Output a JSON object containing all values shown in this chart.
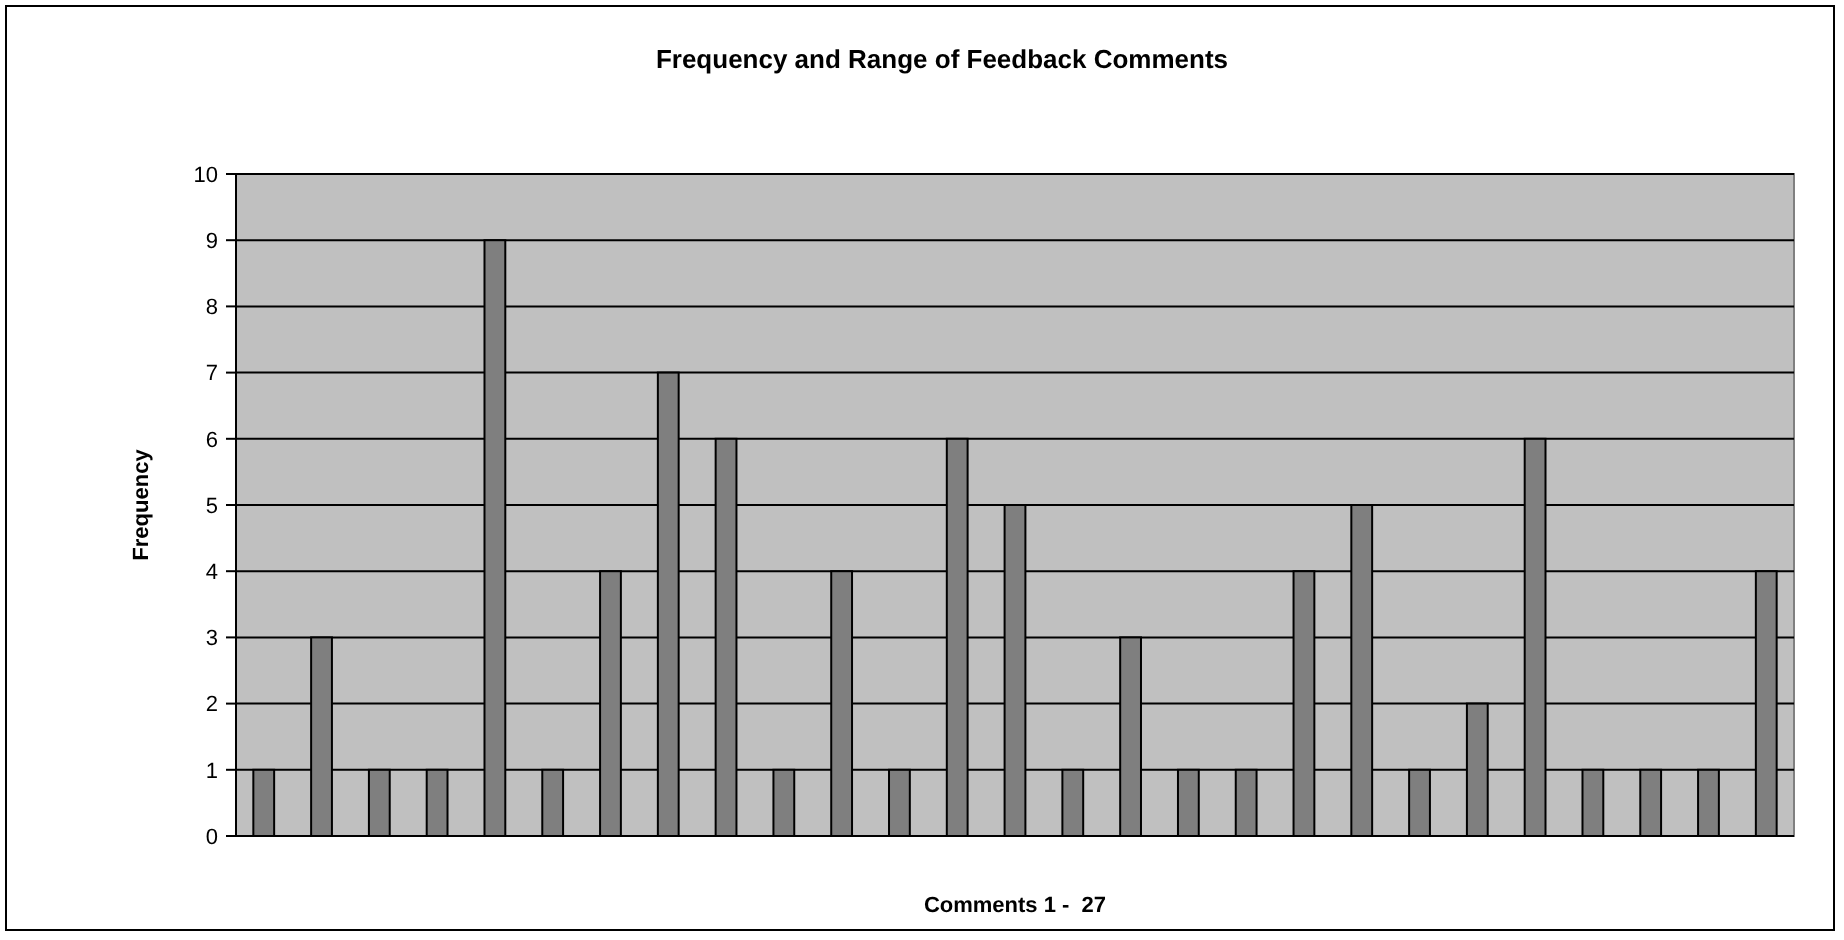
{
  "chart_data": {
    "type": "bar",
    "title": "Frequency and Range of Feedback Comments",
    "xlabel": "Comments 1 -  27",
    "ylabel": "Frequency",
    "categories": [
      null,
      null,
      null,
      null,
      null,
      null,
      null,
      null,
      null,
      null,
      null,
      null,
      null,
      null,
      null,
      null,
      null,
      null,
      null,
      null,
      null,
      null,
      null,
      null,
      null,
      null,
      null
    ],
    "values": [
      1,
      3,
      1,
      1,
      9,
      1,
      4,
      7,
      6,
      1,
      4,
      1,
      6,
      5,
      1,
      3,
      1,
      1,
      4,
      5,
      1,
      2,
      6,
      1,
      1,
      1,
      4
    ],
    "color": "#7f7f7f",
    "ylim": [
      0,
      10
    ],
    "yticks": [
      0,
      1,
      2,
      3,
      4,
      5,
      6,
      7,
      8,
      9,
      10
    ],
    "grid": "y"
  }
}
